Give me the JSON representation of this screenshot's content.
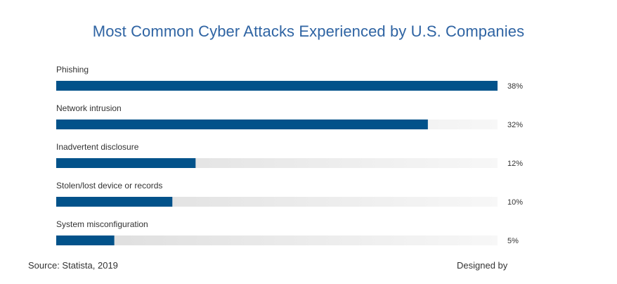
{
  "chart_data": {
    "type": "bar",
    "orientation": "horizontal",
    "title": "Most Common Cyber Attacks Experienced by U.S. Companies",
    "categories": [
      "Phishing",
      "Network intrusion",
      "Inadvertent disclosure",
      "Stolen/lost device or records",
      "System misconfiguration"
    ],
    "values": [
      38,
      32,
      12,
      10,
      5
    ],
    "value_labels": [
      "38%",
      "32%",
      "12%",
      "10%",
      "5%"
    ],
    "xlim": [
      0,
      38
    ],
    "grid": false,
    "legend": "none",
    "colors": {
      "bar": "#02528a",
      "track_start": "#dcdcdc",
      "track_end": "#f7f7f7",
      "title": "#2f64a3"
    }
  },
  "footer": {
    "source": "Source: Statista, 2019",
    "designed_by": "Designed by"
  }
}
